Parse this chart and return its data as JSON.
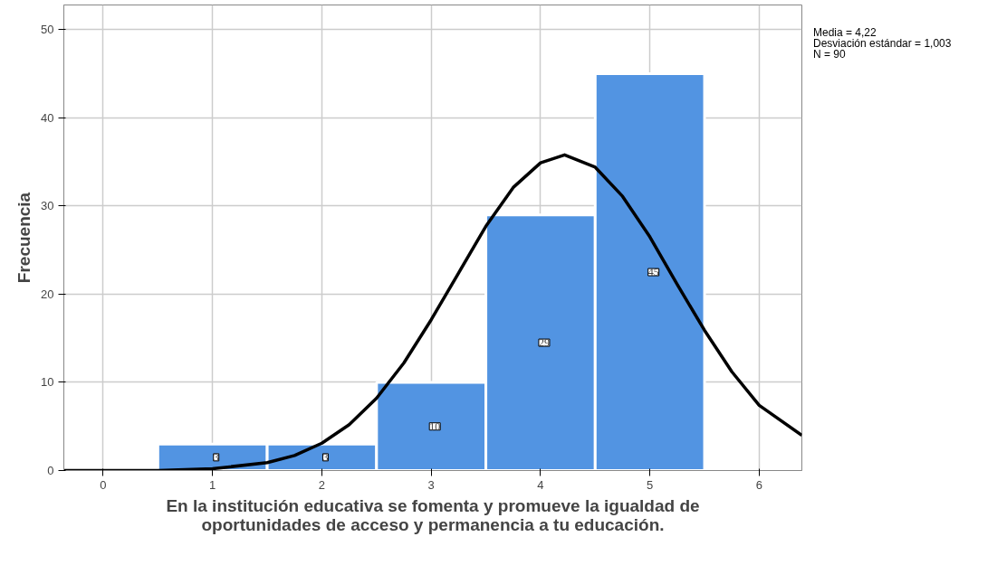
{
  "chart_data": {
    "type": "histogram",
    "xlabel": "En la institución educativa se fomenta y promueve la igualdad de oportunidades de acceso y permanencia a tu educación.",
    "ylabel": "Frecuencia",
    "bins": [
      0.5,
      1.5,
      2.5,
      3.5,
      4.5,
      5.5
    ],
    "values": [
      3,
      3,
      10,
      29,
      45
    ],
    "color": "#5294e2",
    "value_labels": [
      "3",
      "3",
      "10",
      "29",
      "45"
    ],
    "series": [
      {
        "type": "line",
        "color": "#000000",
        "x": [
          -0.36,
          0,
          0.5,
          1,
          1.5,
          1.75,
          2,
          2.25,
          2.5,
          2.75,
          3,
          3.25,
          3.5,
          3.75,
          4,
          4.22,
          4.5,
          4.75,
          5,
          5.25,
          5.5,
          5.75,
          6,
          6.39
        ],
        "values": [
          0,
          0,
          0,
          0.2,
          0.9,
          1.7,
          3.1,
          5.2,
          8.2,
          12.2,
          17.1,
          22.4,
          27.7,
          32.1,
          34.9,
          35.8,
          34.4,
          31.1,
          26.5,
          21.1,
          15.9,
          11.2,
          7.4,
          4.0
        ]
      }
    ],
    "xlim": [
      -0.36,
      6.39
    ],
    "ylim": [
      0,
      52.8
    ],
    "xticks": [
      0,
      1,
      2,
      3,
      4,
      5,
      6
    ],
    "yticks": [
      0,
      10,
      20,
      30,
      40,
      50
    ],
    "grid": true,
    "annotations": [
      "Media = 4,22",
      "Desviación estándar = 1,003",
      "N = 90"
    ]
  }
}
